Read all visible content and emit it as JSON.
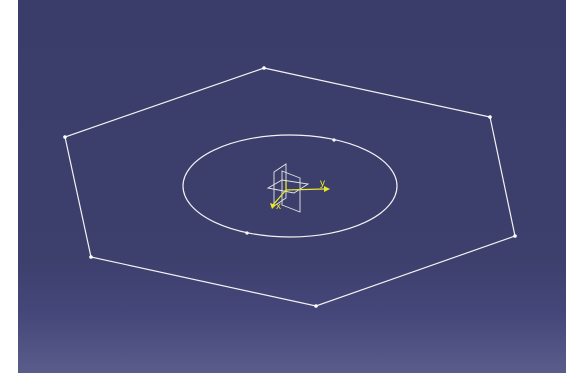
{
  "viewport": {
    "background_top": "#3a3c6a",
    "background_bottom": "#5a5c8a",
    "sketch_color": "#ffffff",
    "axis_color": "#e8e82a"
  },
  "compass": {
    "y_axis_label": "y",
    "x_axis_label": "x"
  }
}
